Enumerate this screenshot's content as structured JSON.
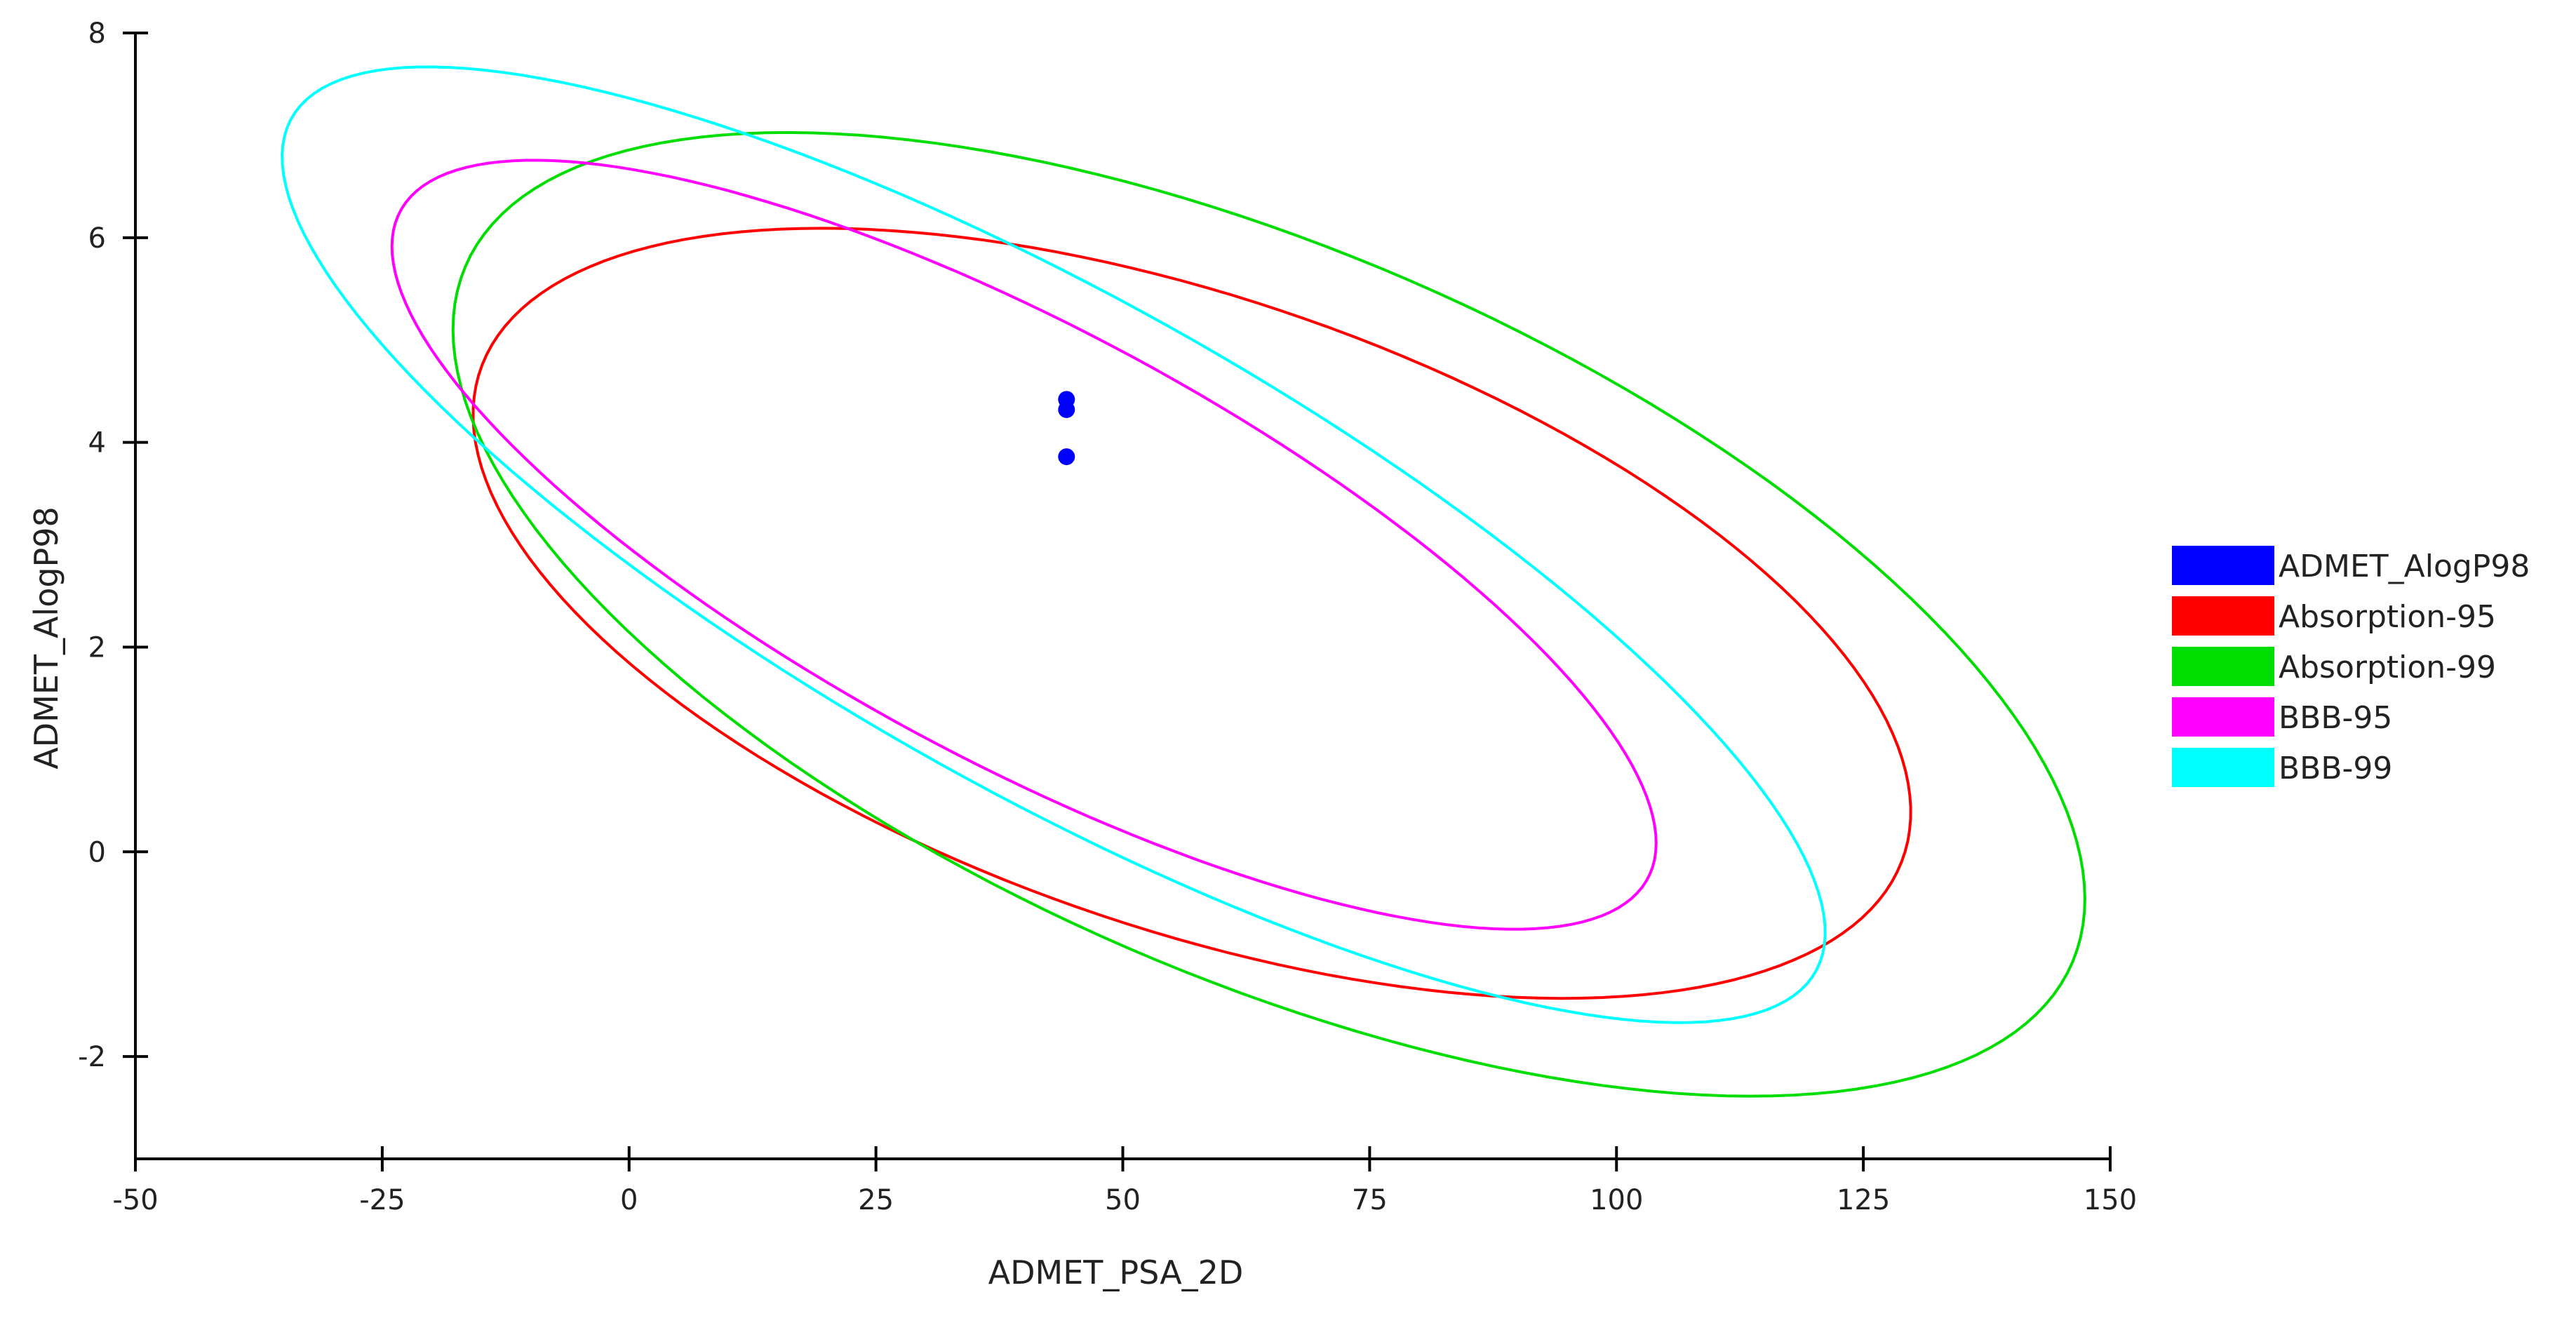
{
  "chart_data": {
    "type": "scatter",
    "xlabel": "ADMET_PSA_2D",
    "ylabel": "ADMET_AlogP98",
    "xlim": [
      -50,
      150
    ],
    "ylim": [
      -3,
      8
    ],
    "x_ticks": [
      -50,
      -25,
      0,
      25,
      50,
      75,
      100,
      125,
      150
    ],
    "y_ticks": [
      -2,
      0,
      2,
      4,
      6,
      8
    ],
    "x_tick_labels": [
      "-50",
      "-25",
      "0",
      "25",
      "50",
      "75",
      "100",
      "125",
      "150"
    ],
    "y_tick_labels": [
      "-2",
      "0",
      "2",
      "4",
      "6",
      "8"
    ],
    "grid": false,
    "legend_position": "right",
    "series": [
      {
        "name": "ADMET_AlogP98",
        "kind": "points",
        "color": "#0000ff",
        "points": [
          [
            44.3,
            4.42
          ],
          [
            44.3,
            4.32
          ],
          [
            44.3,
            3.86
          ]
        ]
      },
      {
        "name": "Absorption-95",
        "kind": "ellipse",
        "color": "#ff0000",
        "center": [
          57.0,
          2.33
        ],
        "axis_vertices": [
          [
            128.5,
            1.03
          ],
          [
            -1.7,
            3.6
          ],
          [
            43.3,
            5.86
          ],
          [
            91.6,
            -1.2
          ]
        ]
      },
      {
        "name": "Absorption-99",
        "kind": "ellipse",
        "color": "#00dd00",
        "center": [
          64.8,
          2.32
        ],
        "axis_vertices": [
          [
            144.2,
            0.7
          ],
          [
            -17.5,
            3.95
          ],
          [
            41.9,
            6.74
          ],
          [
            93.6,
            -2.09
          ]
        ]
      },
      {
        "name": "BBB-95",
        "kind": "ellipse",
        "color": "#ff00ff",
        "center": [
          40.0,
          3.0
        ],
        "axis_vertices": [
          [
            98.5,
            1.3
          ],
          [
            -13.3,
            4.7
          ],
          [
            14.0,
            6.35
          ],
          [
            70.7,
            -0.39
          ]
        ]
      },
      {
        "name": "BBB-99",
        "kind": "ellipse",
        "color": "#00ffff",
        "center": [
          43.0,
          3.0
        ],
        "axis_vertices": [
          [
            112.3,
            0.9
          ],
          [
            -26.7,
            5.1
          ],
          [
            6.9,
            7.17
          ],
          [
            80.0,
            -1.19
          ]
        ]
      }
    ]
  }
}
